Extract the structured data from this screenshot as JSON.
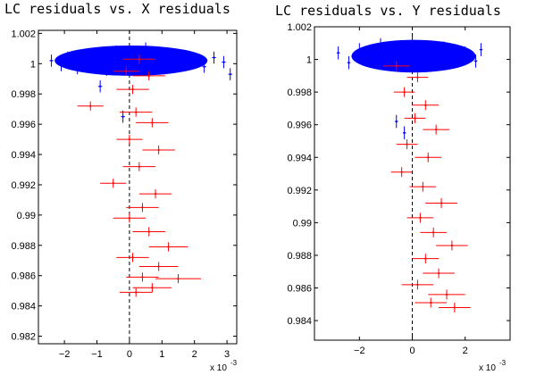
{
  "chart_data": [
    {
      "type": "scatter",
      "title": "LC residuals vs. X residuals",
      "xlabel": "",
      "ylabel": "",
      "xlim": [
        -2.8,
        3.3
      ],
      "ylim": [
        0.9815,
        1.0022
      ],
      "x_multiplier": "x 10",
      "x_multiplier_exponent": "-3",
      "x_ticks": [
        -2,
        -1,
        0,
        1,
        2,
        3
      ],
      "x_tick_labels": [
        "−2",
        "−1",
        "0",
        "1",
        "2",
        "3"
      ],
      "y_ticks": [
        0.982,
        0.984,
        0.986,
        0.988,
        0.99,
        0.992,
        0.994,
        0.996,
        0.998,
        1,
        1.002
      ],
      "y_tick_labels": [
        "0.982",
        "0.984",
        "0.986",
        "0.988",
        "0.99",
        "0.992",
        "0.994",
        "0.996",
        "0.998",
        "1",
        "1.002"
      ],
      "vertical_dashed_line_x": 0,
      "grid": false,
      "series": [
        {
          "color": "#0000ff",
          "points": [
            {
              "x": -2.4,
              "y": 1.0002,
              "xerr": 0.06,
              "yerr": 0.0004
            },
            {
              "x": -2.1,
              "y": 0.9999,
              "xerr": 0.06,
              "yerr": 0.0004
            },
            {
              "x": -1.9,
              "y": 1.0004,
              "xerr": 0.06,
              "yerr": 0.0004
            },
            {
              "x": -1.6,
              "y": 0.9997,
              "xerr": 0.06,
              "yerr": 0.0004
            },
            {
              "x": -1.3,
              "y": 1.0006,
              "xerr": 0.06,
              "yerr": 0.0004
            },
            {
              "x": -1.0,
              "y": 1.0001,
              "xerr": 0.06,
              "yerr": 0.0004
            },
            {
              "x": -0.7,
              "y": 0.9996,
              "xerr": 0.06,
              "yerr": 0.0004
            },
            {
              "x": -0.4,
              "y": 1.0008,
              "xerr": 0.06,
              "yerr": 0.0004
            },
            {
              "x": -0.1,
              "y": 1.0003,
              "xerr": 0.06,
              "yerr": 0.0004
            },
            {
              "x": 0.2,
              "y": 0.9998,
              "xerr": 0.06,
              "yerr": 0.0004
            },
            {
              "x": 0.5,
              "y": 1.001,
              "xerr": 0.06,
              "yerr": 0.0004
            },
            {
              "x": 0.8,
              "y": 1.0002,
              "xerr": 0.06,
              "yerr": 0.0004
            },
            {
              "x": 1.1,
              "y": 0.9997,
              "xerr": 0.06,
              "yerr": 0.0004
            },
            {
              "x": 1.4,
              "y": 1.0005,
              "xerr": 0.06,
              "yerr": 0.0004
            },
            {
              "x": 1.7,
              "y": 1.0,
              "xerr": 0.06,
              "yerr": 0.0004
            },
            {
              "x": 2.0,
              "y": 1.0003,
              "xerr": 0.06,
              "yerr": 0.0004
            },
            {
              "x": 2.3,
              "y": 0.9998,
              "xerr": 0.06,
              "yerr": 0.0004
            },
            {
              "x": 2.6,
              "y": 1.0004,
              "xerr": 0.06,
              "yerr": 0.0004
            },
            {
              "x": 2.9,
              "y": 1.0001,
              "xerr": 0.06,
              "yerr": 0.0004
            },
            {
              "x": 3.1,
              "y": 0.9993,
              "xerr": 0.06,
              "yerr": 0.0004
            },
            {
              "x": -0.9,
              "y": 0.9985,
              "xerr": 0.06,
              "yerr": 0.0004
            },
            {
              "x": -0.2,
              "y": 0.9965,
              "xerr": 0.06,
              "yerr": 0.0004
            }
          ]
        },
        {
          "color": "#ff0000",
          "points": [
            {
              "x": 0.3,
              "y": 1.0003,
              "xerr": 0.5,
              "yerr": 0.0003
            },
            {
              "x": -0.1,
              "y": 0.9995,
              "xerr": 0.4,
              "yerr": 0.0003
            },
            {
              "x": 0.6,
              "y": 0.9992,
              "xerr": 0.5,
              "yerr": 0.0003
            },
            {
              "x": 0.1,
              "y": 0.9983,
              "xerr": 0.5,
              "yerr": 0.0003
            },
            {
              "x": -1.2,
              "y": 0.9972,
              "xerr": 0.4,
              "yerr": 0.0003
            },
            {
              "x": 0.2,
              "y": 0.9968,
              "xerr": 0.5,
              "yerr": 0.0003
            },
            {
              "x": 0.7,
              "y": 0.9961,
              "xerr": 0.5,
              "yerr": 0.0003
            },
            {
              "x": 0.0,
              "y": 0.995,
              "xerr": 0.4,
              "yerr": 0.0003
            },
            {
              "x": 0.9,
              "y": 0.9943,
              "xerr": 0.5,
              "yerr": 0.0003
            },
            {
              "x": 0.3,
              "y": 0.9932,
              "xerr": 0.5,
              "yerr": 0.0003
            },
            {
              "x": -0.5,
              "y": 0.9921,
              "xerr": 0.4,
              "yerr": 0.0003
            },
            {
              "x": 0.8,
              "y": 0.9914,
              "xerr": 0.5,
              "yerr": 0.0003
            },
            {
              "x": 0.4,
              "y": 0.9905,
              "xerr": 0.5,
              "yerr": 0.0003
            },
            {
              "x": 0.0,
              "y": 0.9898,
              "xerr": 0.5,
              "yerr": 0.0003
            },
            {
              "x": 0.6,
              "y": 0.9889,
              "xerr": 0.5,
              "yerr": 0.0003
            },
            {
              "x": 1.2,
              "y": 0.9879,
              "xerr": 0.6,
              "yerr": 0.0003
            },
            {
              "x": 0.1,
              "y": 0.9872,
              "xerr": 0.5,
              "yerr": 0.0003
            },
            {
              "x": 0.9,
              "y": 0.9866,
              "xerr": 0.6,
              "yerr": 0.0003
            },
            {
              "x": 0.4,
              "y": 0.9859,
              "xerr": 0.5,
              "yerr": 0.0003
            },
            {
              "x": 1.5,
              "y": 0.9858,
              "xerr": 0.7,
              "yerr": 0.0003
            },
            {
              "x": 0.7,
              "y": 0.9852,
              "xerr": 0.6,
              "yerr": 0.0003
            },
            {
              "x": 0.2,
              "y": 0.9849,
              "xerr": 0.5,
              "yerr": 0.0003
            }
          ]
        }
      ]
    },
    {
      "type": "scatter",
      "title": "LC residuals vs. Y residuals",
      "xlabel": "",
      "ylabel": "",
      "xlim": [
        -3.7,
        3.7
      ],
      "ylim": [
        0.9828,
        1.002
      ],
      "x_multiplier": "x 10",
      "x_multiplier_exponent": "-3",
      "x_ticks": [
        -2,
        0,
        2
      ],
      "x_tick_labels": [
        "−2",
        "0",
        "2"
      ],
      "y_ticks": [
        0.984,
        0.986,
        0.988,
        0.99,
        0.992,
        0.994,
        0.996,
        0.998,
        1,
        1.002
      ],
      "y_tick_labels": [
        "0.984",
        "0.986",
        "0.988",
        "0.99",
        "0.992",
        "0.994",
        "0.996",
        "0.998",
        "1",
        "1.002"
      ],
      "vertical_dashed_line_x": 0,
      "grid": false,
      "series": [
        {
          "color": "#0000ff",
          "points": [
            {
              "x": -2.8,
              "y": 1.0004,
              "xerr": 0.06,
              "yerr": 0.0004
            },
            {
              "x": -2.4,
              "y": 0.9998,
              "xerr": 0.06,
              "yerr": 0.0004
            },
            {
              "x": -2.0,
              "y": 1.0006,
              "xerr": 0.06,
              "yerr": 0.0004
            },
            {
              "x": -1.6,
              "y": 1.0,
              "xerr": 0.06,
              "yerr": 0.0004
            },
            {
              "x": -1.2,
              "y": 1.0009,
              "xerr": 0.06,
              "yerr": 0.0004
            },
            {
              "x": -0.8,
              "y": 1.0002,
              "xerr": 0.06,
              "yerr": 0.0004
            },
            {
              "x": -0.4,
              "y": 0.9997,
              "xerr": 0.06,
              "yerr": 0.0004
            },
            {
              "x": 0.0,
              "y": 1.001,
              "xerr": 0.06,
              "yerr": 0.0004
            },
            {
              "x": 0.4,
              "y": 1.0003,
              "xerr": 0.06,
              "yerr": 0.0004
            },
            {
              "x": 0.8,
              "y": 0.9998,
              "xerr": 0.06,
              "yerr": 0.0004
            },
            {
              "x": 1.2,
              "y": 1.0007,
              "xerr": 0.06,
              "yerr": 0.0004
            },
            {
              "x": 1.6,
              "y": 1.0001,
              "xerr": 0.06,
              "yerr": 0.0004
            },
            {
              "x": 2.0,
              "y": 1.0004,
              "xerr": 0.06,
              "yerr": 0.0004
            },
            {
              "x": 2.4,
              "y": 0.9999,
              "xerr": 0.06,
              "yerr": 0.0004
            },
            {
              "x": 2.6,
              "y": 1.0006,
              "xerr": 0.06,
              "yerr": 0.0004
            },
            {
              "x": -0.6,
              "y": 0.9962,
              "xerr": 0.06,
              "yerr": 0.0004
            },
            {
              "x": -0.3,
              "y": 0.9955,
              "xerr": 0.06,
              "yerr": 0.0004
            }
          ]
        },
        {
          "color": "#ff0000",
          "points": [
            {
              "x": -0.6,
              "y": 0.9996,
              "xerr": 0.5,
              "yerr": 0.0003
            },
            {
              "x": 0.2,
              "y": 0.9989,
              "xerr": 0.4,
              "yerr": 0.0003
            },
            {
              "x": -0.3,
              "y": 0.998,
              "xerr": 0.4,
              "yerr": 0.0003
            },
            {
              "x": 0.5,
              "y": 0.9972,
              "xerr": 0.5,
              "yerr": 0.0003
            },
            {
              "x": 0.1,
              "y": 0.9964,
              "xerr": 0.4,
              "yerr": 0.0003
            },
            {
              "x": 0.9,
              "y": 0.9957,
              "xerr": 0.5,
              "yerr": 0.0003
            },
            {
              "x": -0.2,
              "y": 0.9948,
              "xerr": 0.4,
              "yerr": 0.0003
            },
            {
              "x": 0.6,
              "y": 0.994,
              "xerr": 0.5,
              "yerr": 0.0003
            },
            {
              "x": -0.4,
              "y": 0.9931,
              "xerr": 0.4,
              "yerr": 0.0003
            },
            {
              "x": 0.4,
              "y": 0.9922,
              "xerr": 0.5,
              "yerr": 0.0003
            },
            {
              "x": 1.1,
              "y": 0.9912,
              "xerr": 0.6,
              "yerr": 0.0003
            },
            {
              "x": 0.3,
              "y": 0.9903,
              "xerr": 0.5,
              "yerr": 0.0003
            },
            {
              "x": 0.8,
              "y": 0.9894,
              "xerr": 0.5,
              "yerr": 0.0003
            },
            {
              "x": 1.5,
              "y": 0.9886,
              "xerr": 0.6,
              "yerr": 0.0003
            },
            {
              "x": 0.5,
              "y": 0.9878,
              "xerr": 0.5,
              "yerr": 0.0003
            },
            {
              "x": 1.0,
              "y": 0.9869,
              "xerr": 0.6,
              "yerr": 0.0003
            },
            {
              "x": 0.2,
              "y": 0.9862,
              "xerr": 0.6,
              "yerr": 0.0003
            },
            {
              "x": 1.3,
              "y": 0.9856,
              "xerr": 0.7,
              "yerr": 0.0003
            },
            {
              "x": 0.7,
              "y": 0.9851,
              "xerr": 0.6,
              "yerr": 0.0003
            },
            {
              "x": 1.6,
              "y": 0.9848,
              "xerr": 0.6,
              "yerr": 0.0003
            }
          ]
        }
      ]
    }
  ]
}
